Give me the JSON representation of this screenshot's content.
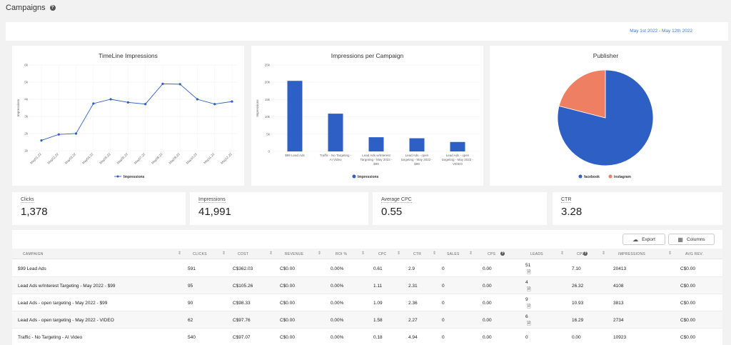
{
  "header": {
    "title": "Campaigns"
  },
  "date_range": "May 1st 2022 - May 12th 2022",
  "charts": {
    "timeline": {
      "title": "TimeLine Impressions",
      "ylabel": "Impressions",
      "legend": "Impressions",
      "color": "#2d5fc4"
    },
    "per_campaign": {
      "title": "Impressions per Campaign",
      "ylabel": "Impressions",
      "legend": "Impressions",
      "color": "#2d5fc4"
    },
    "publisher": {
      "title": "Publisher",
      "colors": [
        "#2d5fc4",
        "#ee7f63"
      ]
    }
  },
  "chart_data": [
    {
      "type": "line",
      "title": "TimeLine Impressions",
      "ylabel": "Impressions",
      "ylim": [
        1000,
        6000
      ],
      "yticks": [
        "1k",
        "2k",
        "3k",
        "4k",
        "5k",
        "6k"
      ],
      "x": [
        "May01,22",
        "May02,22",
        "May03,22",
        "May04,22",
        "May05,22",
        "May06,22",
        "May07,22",
        "May08,22",
        "May09,22",
        "May10,22",
        "May11,22",
        "May12,22"
      ],
      "series": [
        {
          "name": "Impressions",
          "values": [
            1600,
            1950,
            2000,
            3750,
            4000,
            3820,
            3720,
            4900,
            4880,
            4000,
            3720,
            3870
          ]
        }
      ]
    },
    {
      "type": "bar",
      "title": "Impressions per Campaign",
      "ylabel": "Impressions",
      "ylim": [
        0,
        25000
      ],
      "yticks": [
        "0",
        "5k",
        "10k",
        "15k",
        "20k",
        "25k"
      ],
      "categories": [
        [
          "$99 Lead Ads"
        ],
        [
          "Traffic - No Targeting -",
          "AI Video"
        ],
        [
          "Lead Ads w/Interest",
          "Targeting - May 2022 -",
          "$99"
        ],
        [
          "Lead Ads - open",
          "targeting - May 2022 -",
          "$99"
        ],
        [
          "Lead Ads - open",
          "targeting - May 2022 -",
          "VIDEO"
        ]
      ],
      "series": [
        {
          "name": "Impressions",
          "values": [
            20413,
            10923,
            4108,
            3813,
            2734
          ]
        }
      ]
    },
    {
      "type": "pie",
      "title": "Publisher",
      "labels": [
        "facebook",
        "instagram"
      ],
      "values": [
        79,
        21
      ]
    }
  ],
  "kpis": [
    {
      "label": "Clicks",
      "value": "1,378"
    },
    {
      "label": "Impressions",
      "value": "41,991"
    },
    {
      "label": "Average CPC",
      "value": "0.55"
    },
    {
      "label": "CTR",
      "value": "3.28"
    }
  ],
  "table": {
    "export_label": "Export",
    "columns_label": "Columns",
    "headers": [
      "CAMPAIGN",
      "CLICKS",
      "COST",
      "REVENUE",
      "ROI %",
      "CPC",
      "CTR",
      "SALES",
      "CPS",
      "LEADS",
      "CPL",
      "IMPRESSIONS",
      "AVG REV."
    ],
    "rows": [
      [
        "$99 Lead Ads",
        "591",
        "C$362.03",
        "C$0.00",
        "0.00%",
        "0.61",
        "2.9",
        "0",
        "0.00",
        "51",
        "7.10",
        "20413",
        "C$0.00"
      ],
      [
        "Lead Ads w/Interest Targeting - May 2022 - $99",
        "95",
        "C$105.26",
        "C$0.00",
        "0.00%",
        "1.11",
        "2.31",
        "0",
        "0.00",
        "4",
        "26.32",
        "4108",
        "C$0.00"
      ],
      [
        "Lead Ads - open targeting - May 2022 - $99",
        "90",
        "C$98.33",
        "C$0.00",
        "0.00%",
        "1.09",
        "2.36",
        "0",
        "0.00",
        "9",
        "10.93",
        "3813",
        "C$0.00"
      ],
      [
        "Lead Ads - open targeting - May 2022 - VIDEO",
        "62",
        "C$97.76",
        "C$0.00",
        "0.00%",
        "1.58",
        "2.27",
        "0",
        "0.00",
        "6",
        "16.29",
        "2734",
        "C$0.00"
      ],
      [
        "Traffic - No Targeting - AI Video",
        "540",
        "C$97.07",
        "C$0.00",
        "0.00%",
        "0.18",
        "4.94",
        "0",
        "0.00",
        "0",
        "0.00",
        "10923",
        "C$0.00"
      ]
    ]
  }
}
